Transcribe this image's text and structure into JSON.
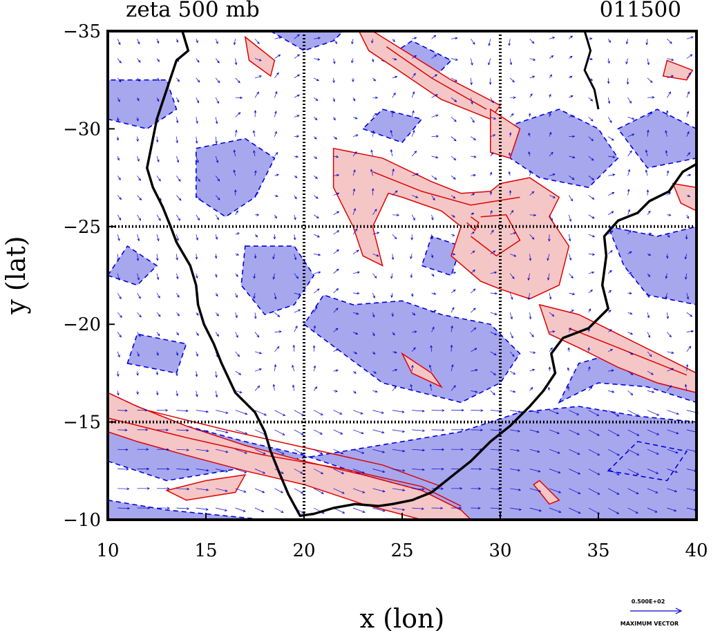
{
  "chart_data": {
    "type": "contour",
    "title": "zeta 500 mb",
    "timestamp": "011500",
    "xlabel": "x (lon)",
    "ylabel": "y (lat)",
    "xlim": [
      10,
      40
    ],
    "ylim": [
      -10,
      -35
    ],
    "x_ticks": [
      10,
      15,
      20,
      25,
      30,
      35,
      40
    ],
    "y_ticks": [
      -35,
      -30,
      -25,
      -20,
      -15,
      -10
    ],
    "x_tick_labels": [
      "10",
      "15",
      "20",
      "25",
      "30",
      "35",
      "40"
    ],
    "y_tick_labels": [
      "−35",
      "−30",
      "−25",
      "−20",
      "−15",
      "−10"
    ],
    "grid_lines": {
      "lon": [
        20,
        30
      ],
      "lat": [
        -25,
        -15
      ]
    },
    "vector_legend": {
      "value": "0.500E+02",
      "label": "MAXIMUM VECTOR"
    },
    "colors": {
      "positive_fill": "#f5c6c6",
      "positive_line": "#e00000",
      "negative_fill": "#a7a7ee",
      "negative_line": "#0000dd",
      "coastline": "#000000",
      "vectors": "#0000cc"
    },
    "coastline": [
      [
        13.8,
        -35
      ],
      [
        14.1,
        -34
      ],
      [
        13.5,
        -33.5
      ],
      [
        13,
        -32
      ],
      [
        12.5,
        -30.5
      ],
      [
        12.2,
        -29
      ],
      [
        12,
        -28
      ],
      [
        12.3,
        -27
      ],
      [
        12.8,
        -26
      ],
      [
        13.2,
        -25
      ],
      [
        13.5,
        -24.2
      ],
      [
        14.2,
        -23
      ],
      [
        14.5,
        -22
      ],
      [
        14.6,
        -21
      ],
      [
        14.9,
        -20
      ],
      [
        15.4,
        -19
      ],
      [
        15.8,
        -18
      ],
      [
        16.5,
        -16.5
      ],
      [
        17.5,
        -15.5
      ],
      [
        18,
        -14.5
      ],
      [
        18.3,
        -13.5
      ],
      [
        18.7,
        -12.5
      ],
      [
        19.2,
        -11.3
      ],
      [
        19.8,
        -10.2
      ],
      [
        20.5,
        -10.3
      ],
      [
        21.5,
        -10.6
      ],
      [
        22.6,
        -10.8
      ],
      [
        23.8,
        -10.7
      ],
      [
        24.5,
        -10.8
      ],
      [
        25.5,
        -11
      ],
      [
        26.5,
        -11.4
      ],
      [
        27.5,
        -12.2
      ],
      [
        28.5,
        -13
      ],
      [
        29.5,
        -14
      ],
      [
        30.5,
        -14.8
      ],
      [
        31.5,
        -15.8
      ],
      [
        32.2,
        -16.6
      ],
      [
        32.8,
        -17.5
      ],
      [
        32.6,
        -18.5
      ],
      [
        33.2,
        -19.3
      ],
      [
        34.5,
        -19.8
      ],
      [
        35.5,
        -20.8
      ],
      [
        35.2,
        -22
      ],
      [
        35.4,
        -23.5
      ],
      [
        35.3,
        -24.5
      ],
      [
        36,
        -25.3
      ],
      [
        37,
        -25.7
      ],
      [
        37.6,
        -26.3
      ],
      [
        38.6,
        -26.8
      ],
      [
        39.3,
        -27.8
      ],
      [
        40,
        -28.2
      ]
    ],
    "lake_shore": [
      [
        34.3,
        -35
      ],
      [
        34.6,
        -34
      ],
      [
        34.3,
        -33
      ],
      [
        34.8,
        -32
      ],
      [
        35,
        -31
      ]
    ],
    "positive_regions": [
      [
        [
          10,
          -16.5
        ],
        [
          11.5,
          -15.8
        ],
        [
          14,
          -14.8
        ],
        [
          17,
          -13.8
        ],
        [
          20,
          -13
        ],
        [
          23,
          -12.3
        ],
        [
          26,
          -11.5
        ],
        [
          28,
          -10.5
        ],
        [
          28.5,
          -10
        ],
        [
          26,
          -10
        ],
        [
          23,
          -10.8
        ],
        [
          20,
          -11.8
        ],
        [
          17,
          -12.5
        ],
        [
          14,
          -13.3
        ],
        [
          11.5,
          -14
        ],
        [
          10,
          -14.5
        ]
      ],
      [
        [
          13,
          -11.5
        ],
        [
          15,
          -12
        ],
        [
          17,
          -12.3
        ],
        [
          16.5,
          -11.4
        ],
        [
          14,
          -11
        ]
      ],
      [
        [
          23.5,
          -35
        ],
        [
          27.5,
          -32.5
        ],
        [
          30,
          -31.2
        ],
        [
          29.5,
          -30.5
        ],
        [
          27,
          -31.5
        ],
        [
          24.8,
          -33
        ],
        [
          23.3,
          -34
        ],
        [
          22.8,
          -35
        ]
      ],
      [
        [
          17,
          -34.7
        ],
        [
          18.5,
          -33.5
        ],
        [
          18.3,
          -32.7
        ],
        [
          17.2,
          -33.5
        ]
      ],
      [
        [
          21.5,
          -29
        ],
        [
          24,
          -28.5
        ],
        [
          26.5,
          -27.3
        ],
        [
          28,
          -26.7
        ],
        [
          29.5,
          -26.8
        ],
        [
          30,
          -27.2
        ],
        [
          31.5,
          -27.5
        ],
        [
          33,
          -26.5
        ],
        [
          32.5,
          -25.5
        ],
        [
          33.5,
          -24
        ],
        [
          33,
          -22
        ],
        [
          31.5,
          -21.3
        ],
        [
          30,
          -21.8
        ],
        [
          29,
          -22.2
        ],
        [
          27.5,
          -23.5
        ],
        [
          28,
          -25
        ],
        [
          27,
          -25.8
        ],
        [
          25,
          -26.5
        ],
        [
          24.3,
          -26.7
        ],
        [
          23.5,
          -25
        ],
        [
          24,
          -23
        ],
        [
          23,
          -23.5
        ],
        [
          22.5,
          -25
        ],
        [
          21.5,
          -27
        ]
      ],
      [
        [
          29.5,
          -31
        ],
        [
          31,
          -30
        ],
        [
          30.5,
          -28.5
        ],
        [
          29.5,
          -28.8
        ]
      ],
      [
        [
          32,
          -21
        ],
        [
          34,
          -20.5
        ],
        [
          36,
          -19.5
        ],
        [
          38,
          -18.5
        ],
        [
          40,
          -17.5
        ],
        [
          40,
          -16.5
        ],
        [
          38,
          -17
        ],
        [
          36,
          -17.8
        ],
        [
          34,
          -18.8
        ],
        [
          32.5,
          -19.5
        ]
      ],
      [
        [
          25,
          -18.5
        ],
        [
          26.5,
          -17.5
        ],
        [
          27,
          -16.8
        ],
        [
          25.5,
          -17.5
        ]
      ],
      [
        [
          38.5,
          -33.5
        ],
        [
          39.8,
          -33
        ],
        [
          39.5,
          -32.5
        ],
        [
          38.3,
          -32.7
        ]
      ],
      [
        [
          38.8,
          -27.2
        ],
        [
          40,
          -27
        ],
        [
          40,
          -25.8
        ],
        [
          39.2,
          -26.2
        ]
      ],
      [
        [
          32,
          -12
        ],
        [
          33,
          -11
        ],
        [
          32.5,
          -10.8
        ],
        [
          31.7,
          -11.8
        ]
      ]
    ],
    "negative_regions": [
      [
        [
          10,
          -13
        ],
        [
          13,
          -12
        ],
        [
          16,
          -12.5
        ],
        [
          19,
          -13
        ],
        [
          22,
          -13.5
        ],
        [
          25,
          -14
        ],
        [
          28,
          -14.5
        ],
        [
          31,
          -15.5
        ],
        [
          34,
          -15.8
        ],
        [
          37,
          -15.3
        ],
        [
          40,
          -15
        ],
        [
          40,
          -10
        ],
        [
          33,
          -10
        ],
        [
          30,
          -10
        ],
        [
          29,
          -10
        ],
        [
          28.5,
          -10
        ],
        [
          26,
          -11.5
        ],
        [
          23,
          -12.3
        ],
        [
          20,
          -13.3
        ],
        [
          17,
          -14
        ],
        [
          14,
          -14.8
        ],
        [
          11.5,
          -15.8
        ],
        [
          10,
          -16.5
        ]
      ],
      [
        [
          10,
          -11
        ],
        [
          13,
          -10.5
        ],
        [
          18,
          -10
        ],
        [
          10,
          -10
        ]
      ],
      [
        [
          33,
          -16
        ],
        [
          35,
          -17
        ],
        [
          37.5,
          -16.8
        ],
        [
          40,
          -16
        ],
        [
          40,
          -17.3
        ],
        [
          38,
          -17.8
        ],
        [
          35.8,
          -18.5
        ],
        [
          34,
          -18
        ]
      ],
      [
        [
          20,
          -20
        ],
        [
          22,
          -18.5
        ],
        [
          24,
          -17
        ],
        [
          26,
          -16.5
        ],
        [
          28,
          -16
        ],
        [
          30,
          -17
        ],
        [
          31,
          -18.5
        ],
        [
          29.5,
          -20
        ],
        [
          27,
          -20.5
        ],
        [
          25,
          -21.2
        ],
        [
          22.5,
          -21
        ],
        [
          21,
          -21.5
        ]
      ],
      [
        [
          10,
          -30.5
        ],
        [
          12,
          -30
        ],
        [
          13.5,
          -31
        ],
        [
          13,
          -32.5
        ],
        [
          10,
          -32.5
        ]
      ],
      [
        [
          14.5,
          -29
        ],
        [
          17,
          -29.5
        ],
        [
          18.5,
          -28.5
        ],
        [
          17.5,
          -26.5
        ],
        [
          16,
          -25.5
        ],
        [
          14.5,
          -26.5
        ]
      ],
      [
        [
          17,
          -24
        ],
        [
          19.5,
          -24
        ],
        [
          20.5,
          -22.5
        ],
        [
          19.5,
          -21
        ],
        [
          18,
          -20.5
        ],
        [
          16.8,
          -22
        ]
      ],
      [
        [
          30,
          -30
        ],
        [
          33,
          -31
        ],
        [
          35,
          -30
        ],
        [
          36,
          -28.5
        ],
        [
          34.5,
          -27
        ],
        [
          32,
          -27.5
        ],
        [
          30.5,
          -28.5
        ]
      ],
      [
        [
          36,
          -30
        ],
        [
          38,
          -31
        ],
        [
          40,
          -30
        ],
        [
          40,
          -28.5
        ],
        [
          37.5,
          -28
        ]
      ],
      [
        [
          35.5,
          -25
        ],
        [
          38,
          -24.5
        ],
        [
          40,
          -25
        ],
        [
          40,
          -21
        ],
        [
          37.5,
          -21.5
        ],
        [
          36.3,
          -23
        ]
      ],
      [
        [
          24,
          -33.5
        ],
        [
          26.5,
          -32.5
        ],
        [
          27.5,
          -33.5
        ],
        [
          25.5,
          -34.5
        ]
      ],
      [
        [
          18.3,
          -35
        ],
        [
          20,
          -34
        ],
        [
          21.5,
          -34.5
        ],
        [
          22,
          -35
        ]
      ],
      [
        [
          23,
          -30
        ],
        [
          25,
          -29.3
        ],
        [
          26,
          -30.5
        ],
        [
          24,
          -31
        ]
      ],
      [
        [
          10,
          -22.5
        ],
        [
          11.5,
          -22
        ],
        [
          12.5,
          -23
        ],
        [
          11,
          -24
        ]
      ],
      [
        [
          11,
          -18
        ],
        [
          13.5,
          -17.5
        ],
        [
          14,
          -19
        ],
        [
          11.5,
          -19.5
        ]
      ],
      [
        [
          26,
          -23
        ],
        [
          27.5,
          -22.5
        ],
        [
          28,
          -24
        ],
        [
          26.5,
          -24.5
        ]
      ],
      [
        [
          35.5,
          -12.5
        ],
        [
          38.5,
          -12
        ],
        [
          39.5,
          -13.5
        ],
        [
          37,
          -14
        ]
      ]
    ],
    "positive_contours": [
      [
        [
          10,
          -15.2
        ],
        [
          14,
          -14.2
        ],
        [
          18,
          -13.3
        ],
        [
          22,
          -12.6
        ],
        [
          26,
          -11.7
        ],
        [
          28,
          -10.7
        ]
      ],
      [
        [
          12,
          -15.6
        ],
        [
          16,
          -14.6
        ],
        [
          20,
          -13.7
        ],
        [
          24,
          -12.8
        ],
        [
          27,
          -11.7
        ]
      ],
      [
        [
          24.2,
          -34.2
        ],
        [
          26.5,
          -32.6
        ],
        [
          29.3,
          -31
        ]
      ],
      [
        [
          23.5,
          -27.8
        ],
        [
          26,
          -26.8
        ],
        [
          28.5,
          -26.1
        ],
        [
          31,
          -26.5
        ]
      ],
      [
        [
          28.5,
          -24.5
        ],
        [
          29.8,
          -23.5
        ],
        [
          31,
          -24.3
        ],
        [
          30.3,
          -25.6
        ],
        [
          29,
          -25.5
        ]
      ],
      [
        [
          33.5,
          -19.8
        ],
        [
          36,
          -18.8
        ],
        [
          39.5,
          -17.4
        ]
      ],
      [
        [
          28.3,
          -25.2
        ],
        [
          28.7,
          -24.8
        ],
        [
          28.9,
          -25.2
        ],
        [
          28.5,
          -25.5
        ]
      ]
    ],
    "wind_field": {
      "step": 1.0
    }
  }
}
